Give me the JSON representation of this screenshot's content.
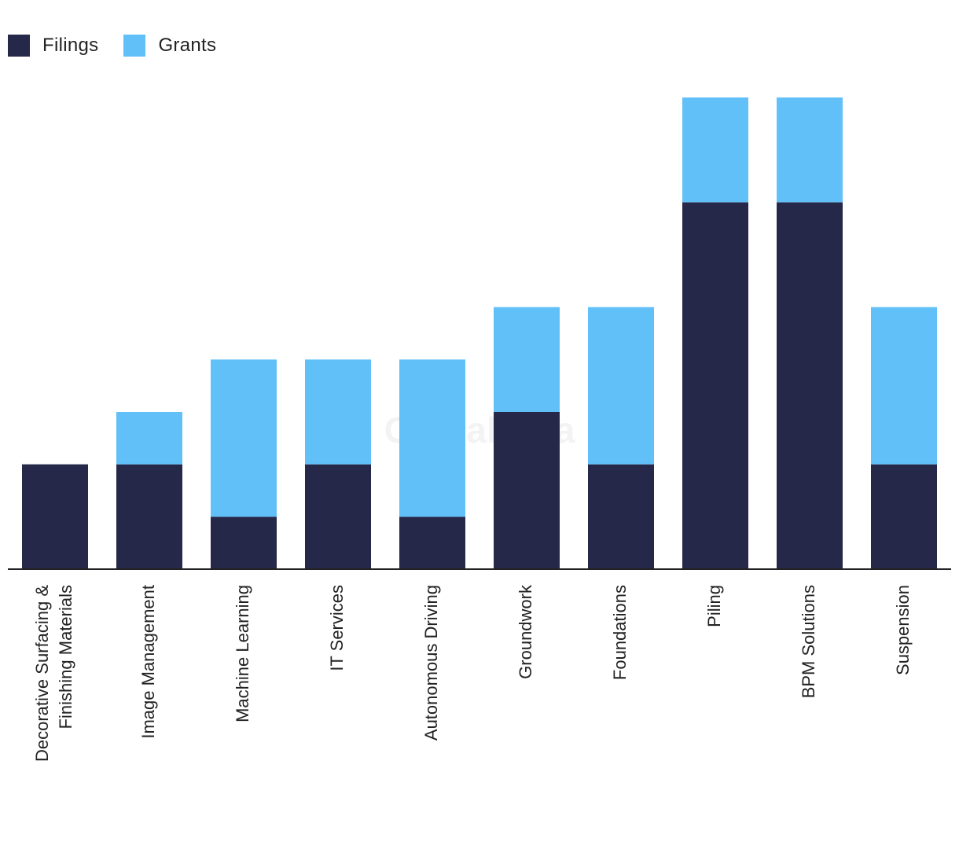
{
  "colors": {
    "filings": "#262849",
    "grants": "#62c0f8",
    "axis": "#222222"
  },
  "legend": [
    {
      "name": "Filings",
      "color": "#262849"
    },
    {
      "name": "Grants",
      "color": "#62c0f8"
    }
  ],
  "watermark": "GlobalData",
  "chart_data": {
    "type": "bar",
    "stacked": true,
    "categories": [
      "Decorative Surfacing & Finishing Materials",
      "Image Management",
      "Machine Learning",
      "IT Services",
      "Autonomous Driving",
      "Groundwork",
      "Foundations",
      "Piling",
      "BPM Solutions",
      "Suspension"
    ],
    "tick_lines": [
      [
        "Decorative Surfacing &",
        "Finishing Materials"
      ],
      [
        "Image Management"
      ],
      [
        "Machine Learning"
      ],
      [
        "IT Services"
      ],
      [
        "Autonomous Driving"
      ],
      [
        "Groundwork"
      ],
      [
        "Foundations"
      ],
      [
        "Piling"
      ],
      [
        "BPM Solutions"
      ],
      [
        "Suspension"
      ]
    ],
    "series": [
      {
        "name": "Filings",
        "values": [
          2,
          2,
          1,
          2,
          1,
          3,
          2,
          7,
          7,
          2
        ]
      },
      {
        "name": "Grants",
        "values": [
          0,
          1,
          3,
          2,
          3,
          2,
          3,
          2,
          2,
          3
        ]
      }
    ],
    "ylim": [
      0,
      9
    ],
    "title": "",
    "xlabel": "",
    "ylabel": "",
    "grid": false,
    "legend_position": "top-left"
  }
}
